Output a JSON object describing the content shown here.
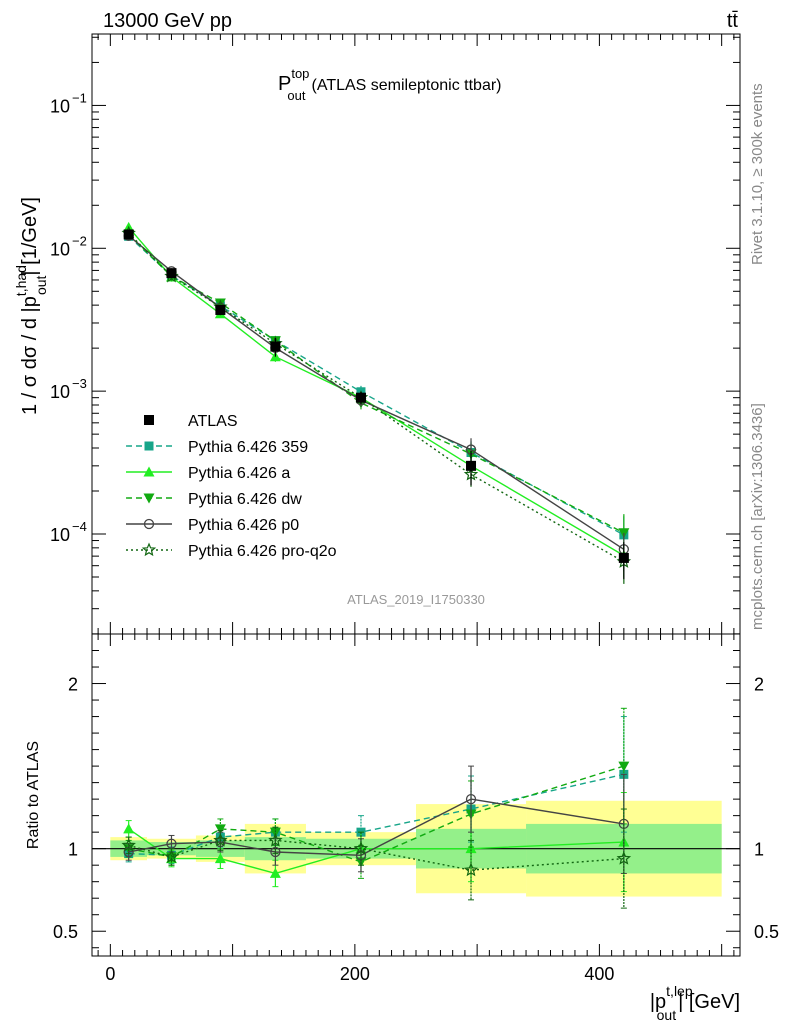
{
  "header": {
    "energy_label": "13000 GeV pp",
    "process_label": "tt̄"
  },
  "side_labels": {
    "rivet": "Rivet 3.1.10, ≥ 300k events",
    "mcplots": "mcplots.cern.ch [arXiv:1306.3436]"
  },
  "analysis_id": "ATLAS_2019_I1750330",
  "chart_data": {
    "type": "scatter",
    "title_main": "P",
    "title_sup": "top",
    "title_sub": "out",
    "title_rest": "(ATLAS semileptonic ttbar)",
    "ylabel": "1 / σ dσ / d |p_out^t,had| [1/GeV]",
    "ylabel_parts": {
      "pre": "1 / σ dσ / d |p",
      "sup": "t,had",
      "sub": "out",
      "post": "| [1/GeV]"
    },
    "xlabel_parts": {
      "pre": "|p",
      "sup": "t,lep",
      "sub": "out",
      "post": "| [GeV]"
    },
    "ratio_ylabel": "Ratio to ATLAS",
    "xlim": [
      -15,
      515
    ],
    "main_ylim_log10": [
      -4.7,
      -0.5
    ],
    "ratio_ylim": [
      0.35,
      2.3
    ],
    "x_ticks": [
      0,
      200,
      400
    ],
    "x_tick_labels": [
      "0",
      "200",
      "400"
    ],
    "main_y_ticks_log10": [
      -4,
      -3,
      -2,
      -1
    ],
    "main_y_tick_labels": [
      {
        "base": "10",
        "exp": "−4"
      },
      {
        "base": "10",
        "exp": "−3"
      },
      {
        "base": "10",
        "exp": "−2"
      },
      {
        "base": "10",
        "exp": "−1"
      }
    ],
    "ratio_y_ticks": [
      0.5,
      1,
      2
    ],
    "ratio_y_tick_labels": [
      "0.5",
      "1",
      "2"
    ],
    "bin_edges": [
      0,
      30,
      70,
      110,
      160,
      250,
      340,
      500
    ],
    "x": [
      15,
      50,
      90,
      135,
      205,
      295,
      420
    ],
    "data": {
      "name": "ATLAS",
      "values": [
        0.0125,
        0.0067,
        0.0037,
        0.00205,
        0.0009,
        0.0003,
        6.8e-05
      ],
      "band_inner": [
        0.05,
        0.04,
        0.05,
        0.07,
        0.06,
        0.12,
        0.15
      ],
      "band_outer": [
        0.07,
        0.06,
        0.08,
        0.15,
        0.1,
        0.27,
        0.29
      ]
    },
    "series": [
      {
        "name": "Pythia 6.426 359",
        "color": "#17a589",
        "dash": "6,4",
        "marker": "square",
        "ratios": [
          0.97,
          0.96,
          1.07,
          1.1,
          1.1,
          1.24,
          1.45
        ],
        "err": [
          0.05,
          0.05,
          0.06,
          0.08,
          0.1,
          0.2,
          0.35
        ]
      },
      {
        "name": "Pythia 6.426 a",
        "color": "#22ee22",
        "dash": "",
        "marker": "triangle-up",
        "ratios": [
          1.12,
          0.94,
          0.94,
          0.85,
          1.0,
          1.0,
          1.04
        ],
        "err": [
          0.05,
          0.05,
          0.06,
          0.08,
          0.1,
          0.2,
          0.3
        ]
      },
      {
        "name": "Pythia 6.426 dw",
        "color": "#11aa11",
        "dash": "6,4",
        "marker": "triangle-down",
        "ratios": [
          1.0,
          0.95,
          1.12,
          1.1,
          0.92,
          1.21,
          1.5
        ],
        "err": [
          0.05,
          0.05,
          0.06,
          0.08,
          0.1,
          0.2,
          0.35
        ]
      },
      {
        "name": "Pythia 6.426 p0",
        "color": "#444444",
        "dash": "",
        "marker": "circle-open",
        "ratios": [
          0.98,
          1.03,
          1.04,
          0.98,
          0.96,
          1.3,
          1.15
        ],
        "err": [
          0.05,
          0.05,
          0.06,
          0.08,
          0.1,
          0.2,
          0.3
        ]
      },
      {
        "name": "Pythia 6.426 pro-q2o",
        "color": "#116611",
        "dash": "2,3",
        "marker": "star-open",
        "ratios": [
          1.02,
          0.95,
          1.05,
          1.05,
          1.0,
          0.87,
          0.94
        ],
        "err": [
          0.05,
          0.05,
          0.06,
          0.08,
          0.1,
          0.18,
          0.3
        ]
      }
    ]
  }
}
